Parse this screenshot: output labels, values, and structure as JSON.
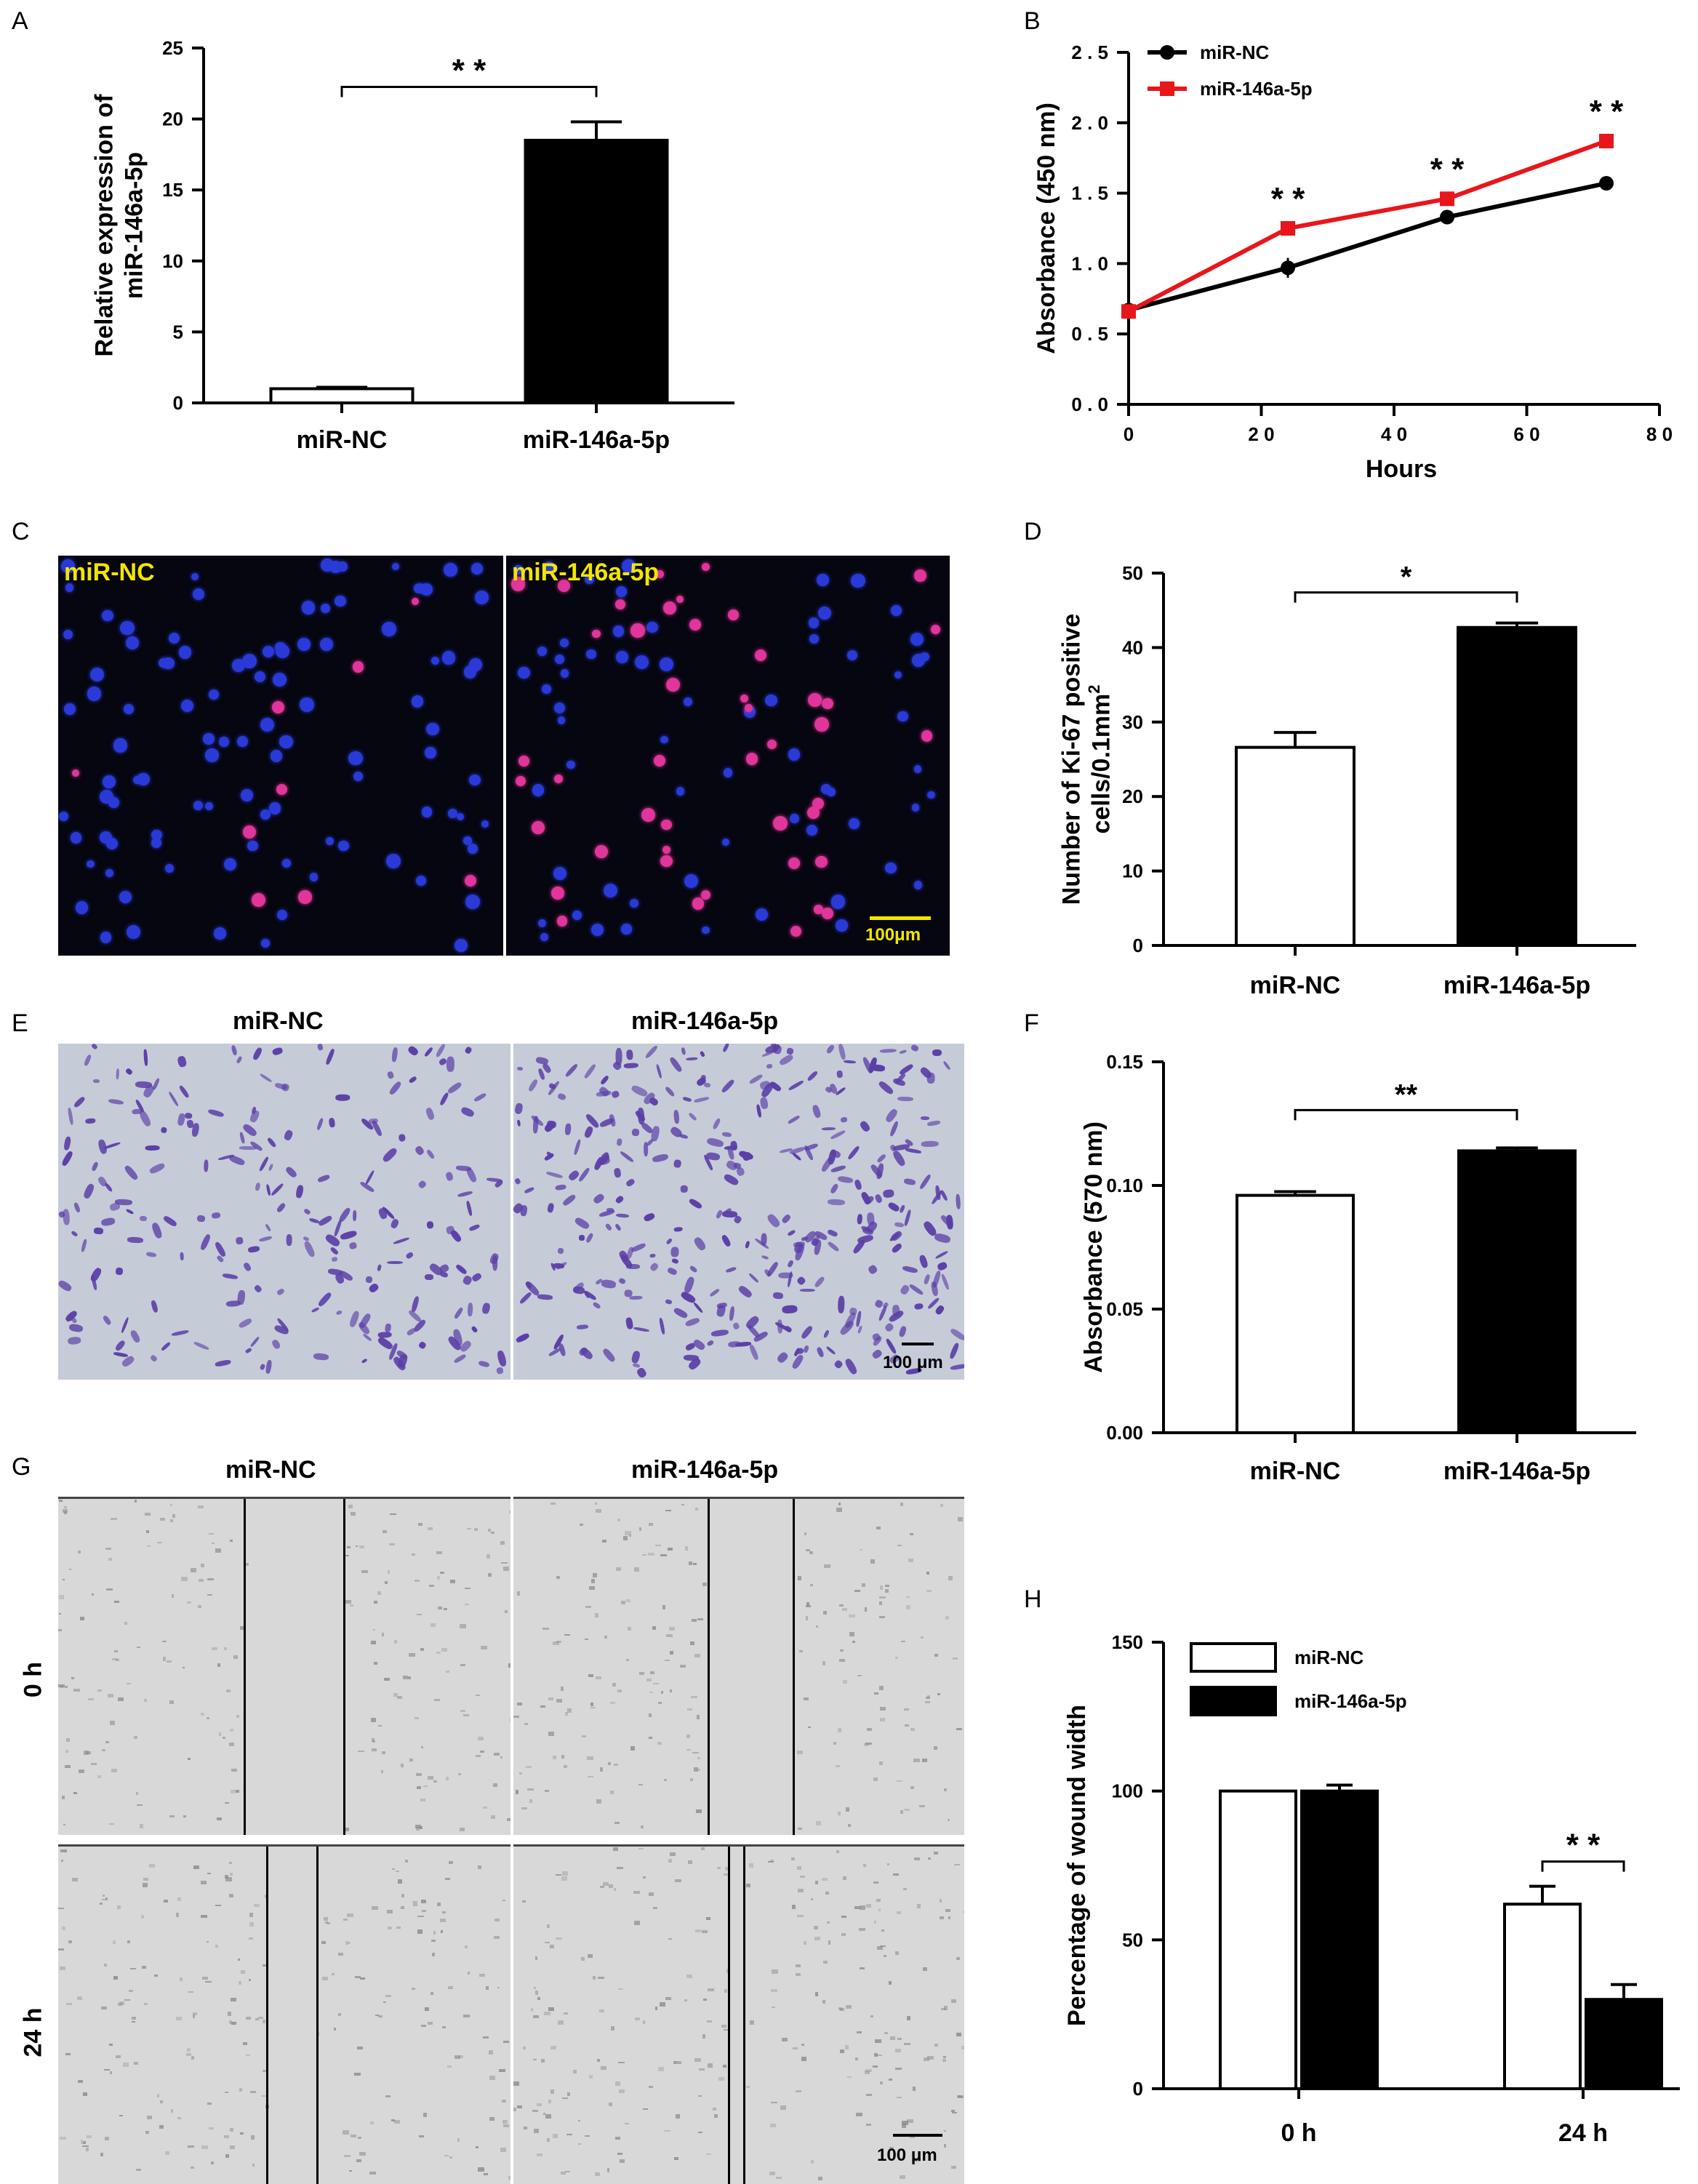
{
  "panels": {
    "a": "A",
    "b": "B",
    "c": "C",
    "d": "D",
    "e": "E",
    "f": "F",
    "g": "G",
    "h": "H"
  },
  "micrographs": {
    "c": {
      "left_label": "miR-NC",
      "right_label": "miR-146a-5p",
      "scale": "100μm",
      "label_color": "#f2e600",
      "bg": "#05060f",
      "nucleus": "#2a3ad8",
      "positive": "#e0359a"
    },
    "e": {
      "left_label": "miR-NC",
      "right_label": "miR-146a-5p",
      "scale": "100 μm",
      "bg": "#c6cbd8",
      "cell": "#5a3fa6"
    },
    "g": {
      "left_label": "miR-NC",
      "right_label": "miR-146a-5p",
      "row0": "0 h",
      "row1": "24 h",
      "scale": "100 μm",
      "bg": "#d8d8d8"
    }
  },
  "chart_data": [
    {
      "id": "A",
      "type": "bar",
      "categories": [
        "miR-NC",
        "miR-146a-5p"
      ],
      "values": [
        1.0,
        18.5
      ],
      "errors": [
        0.1,
        1.3
      ],
      "fills": [
        "#ffffff",
        "#000000"
      ],
      "ylabel_line1": "Relative expression of",
      "ylabel_line2": "miR-146a-5p",
      "ylim": [
        0,
        25
      ],
      "yticks": [
        "0",
        "5",
        "10",
        "15",
        "20",
        "25"
      ],
      "sig": "* *"
    },
    {
      "id": "B",
      "type": "line",
      "x": [
        0,
        24,
        48,
        72
      ],
      "xlabel": "Hours",
      "ylabel": "Absorbance (450 nm)",
      "xlim": [
        0,
        80
      ],
      "ylim": [
        0,
        2.5
      ],
      "xticks": [
        "0",
        "2 0",
        "4 0",
        "6 0",
        "8 0"
      ],
      "yticks": [
        "0 . 0",
        "0 . 5",
        "1 . 0",
        "1 . 5",
        "2 . 0",
        "2 . 5"
      ],
      "series": [
        {
          "name": "miR-NC",
          "values": [
            0.67,
            0.97,
            1.33,
            1.57
          ],
          "errors": [
            0.02,
            0.07,
            0.02,
            0.02
          ],
          "color": "#000000",
          "marker": "circle"
        },
        {
          "name": "miR-146a-5p",
          "values": [
            0.66,
            1.25,
            1.46,
            1.87
          ],
          "errors": [
            0.02,
            0.03,
            0.02,
            0.02
          ],
          "color": "#e8161b",
          "marker": "square"
        }
      ],
      "sig": [
        "* *",
        "* *",
        "* *"
      ]
    },
    {
      "id": "D",
      "type": "bar",
      "categories": [
        "miR-NC",
        "miR-146a-5p"
      ],
      "values": [
        26.6,
        42.7
      ],
      "errors": [
        2.0,
        0.6
      ],
      "fills": [
        "#ffffff",
        "#000000"
      ],
      "ylabel_line1": "Number of Ki-67 positive",
      "ylabel_line2": "cells/0.1mm",
      "ylabel_sup": "2",
      "ylim": [
        0,
        50
      ],
      "yticks": [
        "0",
        "10",
        "20",
        "30",
        "40",
        "50"
      ],
      "sig": "*"
    },
    {
      "id": "F",
      "type": "bar",
      "categories": [
        "miR-NC",
        "miR-146a-5p"
      ],
      "values": [
        0.096,
        0.114
      ],
      "errors": [
        0.0015,
        0.0012
      ],
      "fills": [
        "#ffffff",
        "#000000"
      ],
      "ylabel_line1": "Absorbance (570 nm)",
      "ylim": [
        0,
        0.15
      ],
      "yticks": [
        "0.00",
        "0.05",
        "0.10",
        "0.15"
      ],
      "sig": "**"
    },
    {
      "id": "H",
      "type": "bar",
      "categories": [
        "0 h",
        "24 h"
      ],
      "ylabel_line1": "Percentage of wound width",
      "ylim": [
        0,
        150
      ],
      "yticks": [
        "0",
        "50",
        "100",
        "150"
      ],
      "legend_position": "top-left",
      "series": [
        {
          "name": "miR-NC",
          "values": [
            100,
            62
          ],
          "errors": [
            0,
            6
          ],
          "fill": "#ffffff"
        },
        {
          "name": "miR-146a-5p",
          "values": [
            100,
            30
          ],
          "errors": [
            2,
            5
          ],
          "fill": "#000000"
        }
      ],
      "sig": "* *"
    }
  ]
}
